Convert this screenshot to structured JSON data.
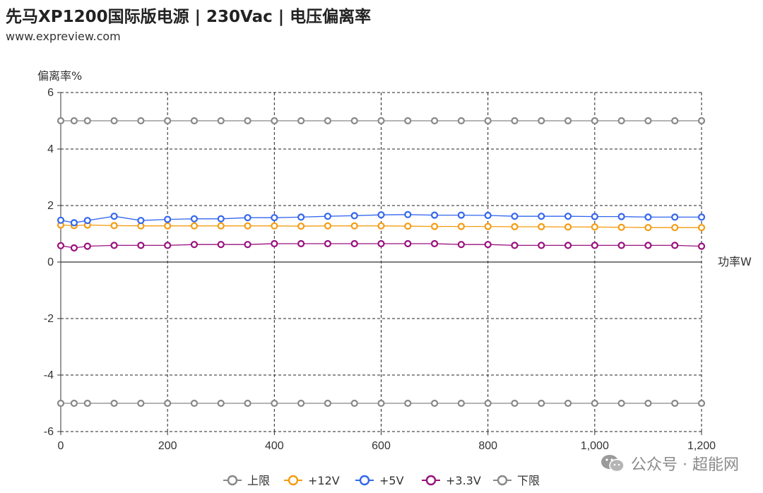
{
  "header": {
    "title": "先马XP1200国际版电源 | 230Vac | 电压偏离率",
    "subtitle": "www.expreview.com"
  },
  "watermark": {
    "text": "公众号 · 超能网",
    "icon": "wechat-icon"
  },
  "chart_data": {
    "type": "line",
    "ylabel": "偏离率%",
    "xlabel": "功率W",
    "xlim": [
      0,
      1200
    ],
    "ylim": [
      -6,
      6
    ],
    "x_ticks": [
      0,
      200,
      400,
      600,
      800,
      1000,
      1200
    ],
    "x_tick_labels": [
      "0",
      "200",
      "400",
      "600",
      "800",
      "1,000",
      "1,200"
    ],
    "y_ticks": [
      -6,
      -4,
      -2,
      0,
      2,
      4,
      6
    ],
    "y_tick_labels": [
      "-6",
      "-4",
      "-2",
      "0",
      "2",
      "4",
      "6"
    ],
    "grid": true,
    "legend_position": "bottom-center",
    "x": [
      0,
      25,
      50,
      100,
      150,
      200,
      250,
      300,
      350,
      400,
      450,
      500,
      550,
      600,
      650,
      700,
      750,
      800,
      850,
      900,
      950,
      1000,
      1050,
      1100,
      1150,
      1200
    ],
    "series": [
      {
        "name": "上限",
        "color": "#888888",
        "values": [
          5,
          5,
          5,
          5,
          5,
          5,
          5,
          5,
          5,
          5,
          5,
          5,
          5,
          5,
          5,
          5,
          5,
          5,
          5,
          5,
          5,
          5,
          5,
          5,
          5,
          5
        ]
      },
      {
        "name": "+12V",
        "color": "#f39c12",
        "values": [
          1.31,
          1.29,
          1.31,
          1.29,
          1.28,
          1.28,
          1.28,
          1.28,
          1.28,
          1.28,
          1.27,
          1.28,
          1.28,
          1.28,
          1.27,
          1.26,
          1.26,
          1.26,
          1.25,
          1.25,
          1.24,
          1.24,
          1.23,
          1.22,
          1.22,
          1.22
        ]
      },
      {
        "name": "+5V",
        "color": "#3366ee",
        "values": [
          1.48,
          1.39,
          1.47,
          1.62,
          1.47,
          1.51,
          1.53,
          1.53,
          1.57,
          1.57,
          1.59,
          1.62,
          1.64,
          1.67,
          1.68,
          1.66,
          1.66,
          1.65,
          1.62,
          1.62,
          1.62,
          1.61,
          1.61,
          1.59,
          1.59,
          1.59
        ]
      },
      {
        "name": "+3.3V",
        "color": "#99117e",
        "values": [
          0.58,
          0.5,
          0.56,
          0.59,
          0.59,
          0.59,
          0.62,
          0.62,
          0.62,
          0.65,
          0.65,
          0.65,
          0.65,
          0.65,
          0.65,
          0.65,
          0.62,
          0.62,
          0.59,
          0.59,
          0.59,
          0.59,
          0.59,
          0.59,
          0.59,
          0.56
        ]
      },
      {
        "name": "下限",
        "color": "#888888",
        "values": [
          -5,
          -5,
          -5,
          -5,
          -5,
          -5,
          -5,
          -5,
          -5,
          -5,
          -5,
          -5,
          -5,
          -5,
          -5,
          -5,
          -5,
          -5,
          -5,
          -5,
          -5,
          -5,
          -5,
          -5,
          -5,
          -5
        ]
      }
    ]
  }
}
